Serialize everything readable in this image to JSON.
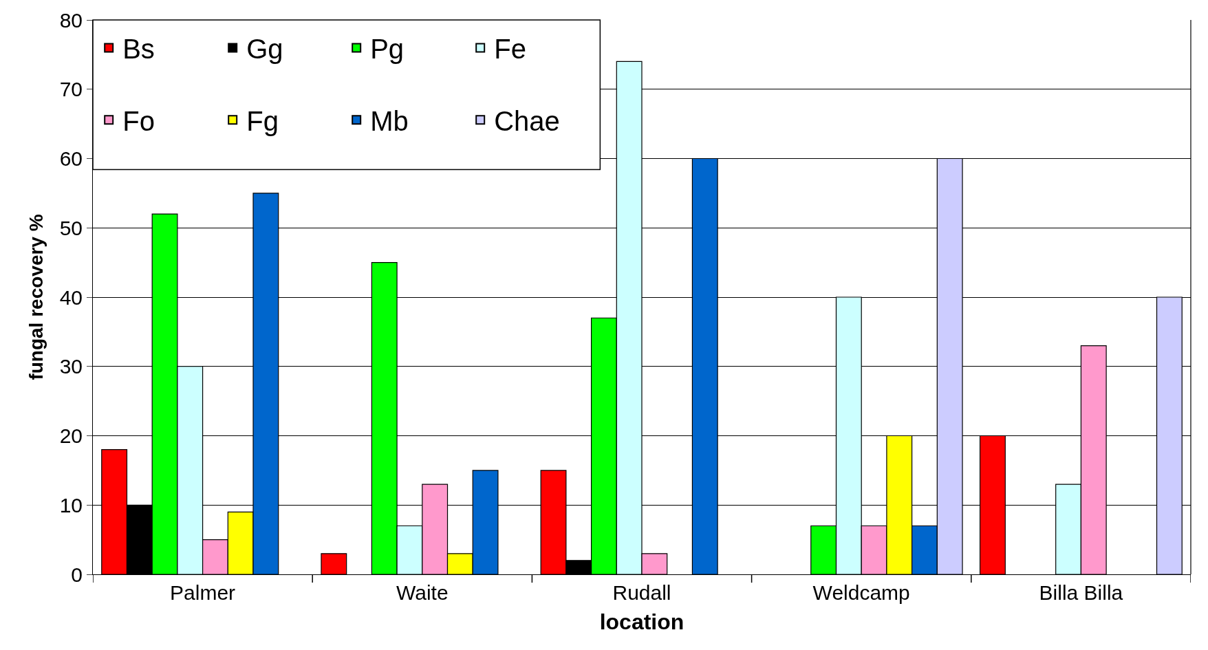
{
  "chart_data": {
    "type": "bar",
    "xlabel": "location",
    "ylabel": "fungal recovery %",
    "categories": [
      "Palmer",
      "Waite",
      "Rudall",
      "Weldcamp",
      "Billa Billa"
    ],
    "series": [
      {
        "name": "Bs",
        "color": "#ff0000",
        "values": [
          18,
          3,
          15,
          null,
          20
        ]
      },
      {
        "name": "Gg",
        "color": "#000000",
        "values": [
          10,
          null,
          2,
          null,
          null
        ]
      },
      {
        "name": "Pg",
        "color": "#00ff00",
        "values": [
          52,
          45,
          37,
          7,
          null
        ]
      },
      {
        "name": "Fe",
        "color": "#ccffff",
        "values": [
          30,
          7,
          74,
          40,
          13
        ]
      },
      {
        "name": "Fo",
        "color": "#ff99cc",
        "values": [
          5,
          13,
          3,
          7,
          33
        ]
      },
      {
        "name": "Fg",
        "color": "#ffff00",
        "values": [
          9,
          3,
          null,
          20,
          null
        ]
      },
      {
        "name": "Mb",
        "color": "#0066cc",
        "values": [
          55,
          15,
          60,
          7,
          null
        ]
      },
      {
        "name": "Chae",
        "color": "#ccccff",
        "values": [
          null,
          null,
          null,
          60,
          40
        ]
      }
    ],
    "ylim": [
      0,
      80
    ],
    "yticks": [
      0,
      10,
      20,
      30,
      40,
      50,
      60,
      70,
      80
    ],
    "grid": "y",
    "legend": "top left"
  }
}
